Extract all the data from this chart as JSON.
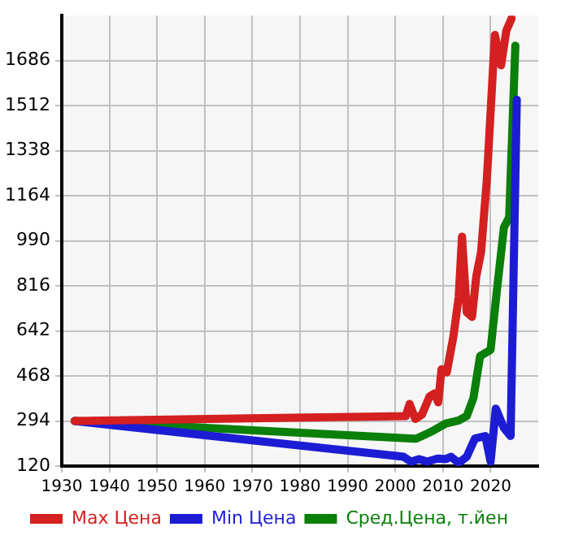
{
  "chart_data": {
    "type": "line",
    "xlim": [
      1930,
      2030
    ],
    "xticks": [
      1930,
      1940,
      1950,
      1960,
      1970,
      1980,
      1990,
      2000,
      2010,
      2020
    ],
    "ylim": [
      120,
      1860
    ],
    "yticks": [
      120,
      294,
      468,
      642,
      816,
      990,
      1164,
      1338,
      1512,
      1686
    ],
    "grid": true,
    "legend": "bottom",
    "marker": "none",
    "line_style": "solid",
    "series": [
      {
        "name": "Max Цена",
        "color": "#d42020",
        "x": [
          1932.7,
          2002.2,
          2003,
          2004.2,
          2005.6,
          2007.2,
          2008.3,
          2009,
          2009.7,
          2010.8,
          2012.2,
          2013.3,
          2014,
          2015,
          2016.1,
          2017,
          2018,
          2019.2,
          2020.9,
          2022.2,
          2023.3,
          2024.4
        ],
        "values": [
          294,
          313,
          360,
          302,
          319,
          389,
          401,
          366,
          494,
          482,
          621,
          772,
          1006,
          714,
          696,
          853,
          946,
          1222,
          1785,
          1668,
          1802,
          1849
        ]
      },
      {
        "name": "Min Цена",
        "color": "#1c1cd4",
        "x": [
          1932.7,
          2001.7,
          2003.3,
          2005,
          2006.7,
          2008.9,
          2010.6,
          2011.7,
          2013.3,
          2015,
          2016.7,
          2018.9,
          2020,
          2021.1,
          2022.8,
          2024.2,
          2025.5
        ],
        "values": [
          294,
          156,
          137,
          147,
          137,
          149,
          147,
          156,
          132,
          156,
          226,
          236,
          137,
          342,
          267,
          236,
          1535
        ]
      },
      {
        "name": "Сред.Цена, т.йен",
        "color": "#0a7f0a",
        "x": [
          1932.7,
          2003.9,
          2004.4,
          2007.8,
          2010.6,
          2013.3,
          2015,
          2016.4,
          2017.8,
          2020,
          2021.3,
          2022.8,
          2023.9,
          2025.2
        ],
        "values": [
          294,
          226,
          226,
          255,
          284,
          296,
          313,
          383,
          545,
          569,
          794,
          1042,
          1081,
          1744
        ]
      }
    ]
  }
}
